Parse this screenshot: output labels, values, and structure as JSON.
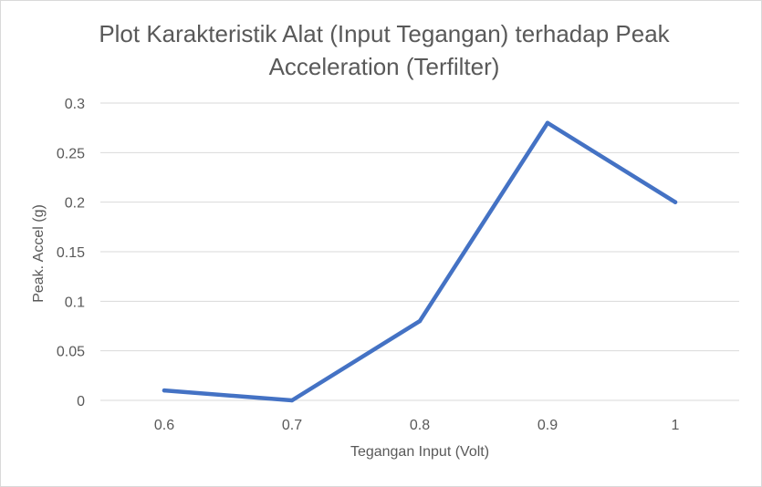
{
  "chart_data": {
    "type": "line",
    "title_line1": "Plot Karakteristik Alat (Input Tegangan)  terhadap Peak",
    "title_line2": "Acceleration (Terfilter)",
    "xlabel": "Tegangan Input (Volt)",
    "ylabel": "Peak. Accel (g)",
    "x": [
      0.6,
      0.7,
      0.8,
      0.9,
      1
    ],
    "x_tick_labels": [
      "0.6",
      "0.7",
      "0.8",
      "0.9",
      "1"
    ],
    "y_ticks": [
      0,
      0.05,
      0.1,
      0.15,
      0.2,
      0.25,
      0.3
    ],
    "y_tick_labels": [
      "0",
      "0.05",
      "0.1",
      "0.15",
      "0.2",
      "0.25",
      "0.3"
    ],
    "ylim": [
      0,
      0.3
    ],
    "grid": true,
    "legend": "none",
    "series": [
      {
        "color": "#4472c4",
        "values": [
          0.01,
          0,
          0.08,
          0.28,
          0.2
        ]
      }
    ]
  }
}
